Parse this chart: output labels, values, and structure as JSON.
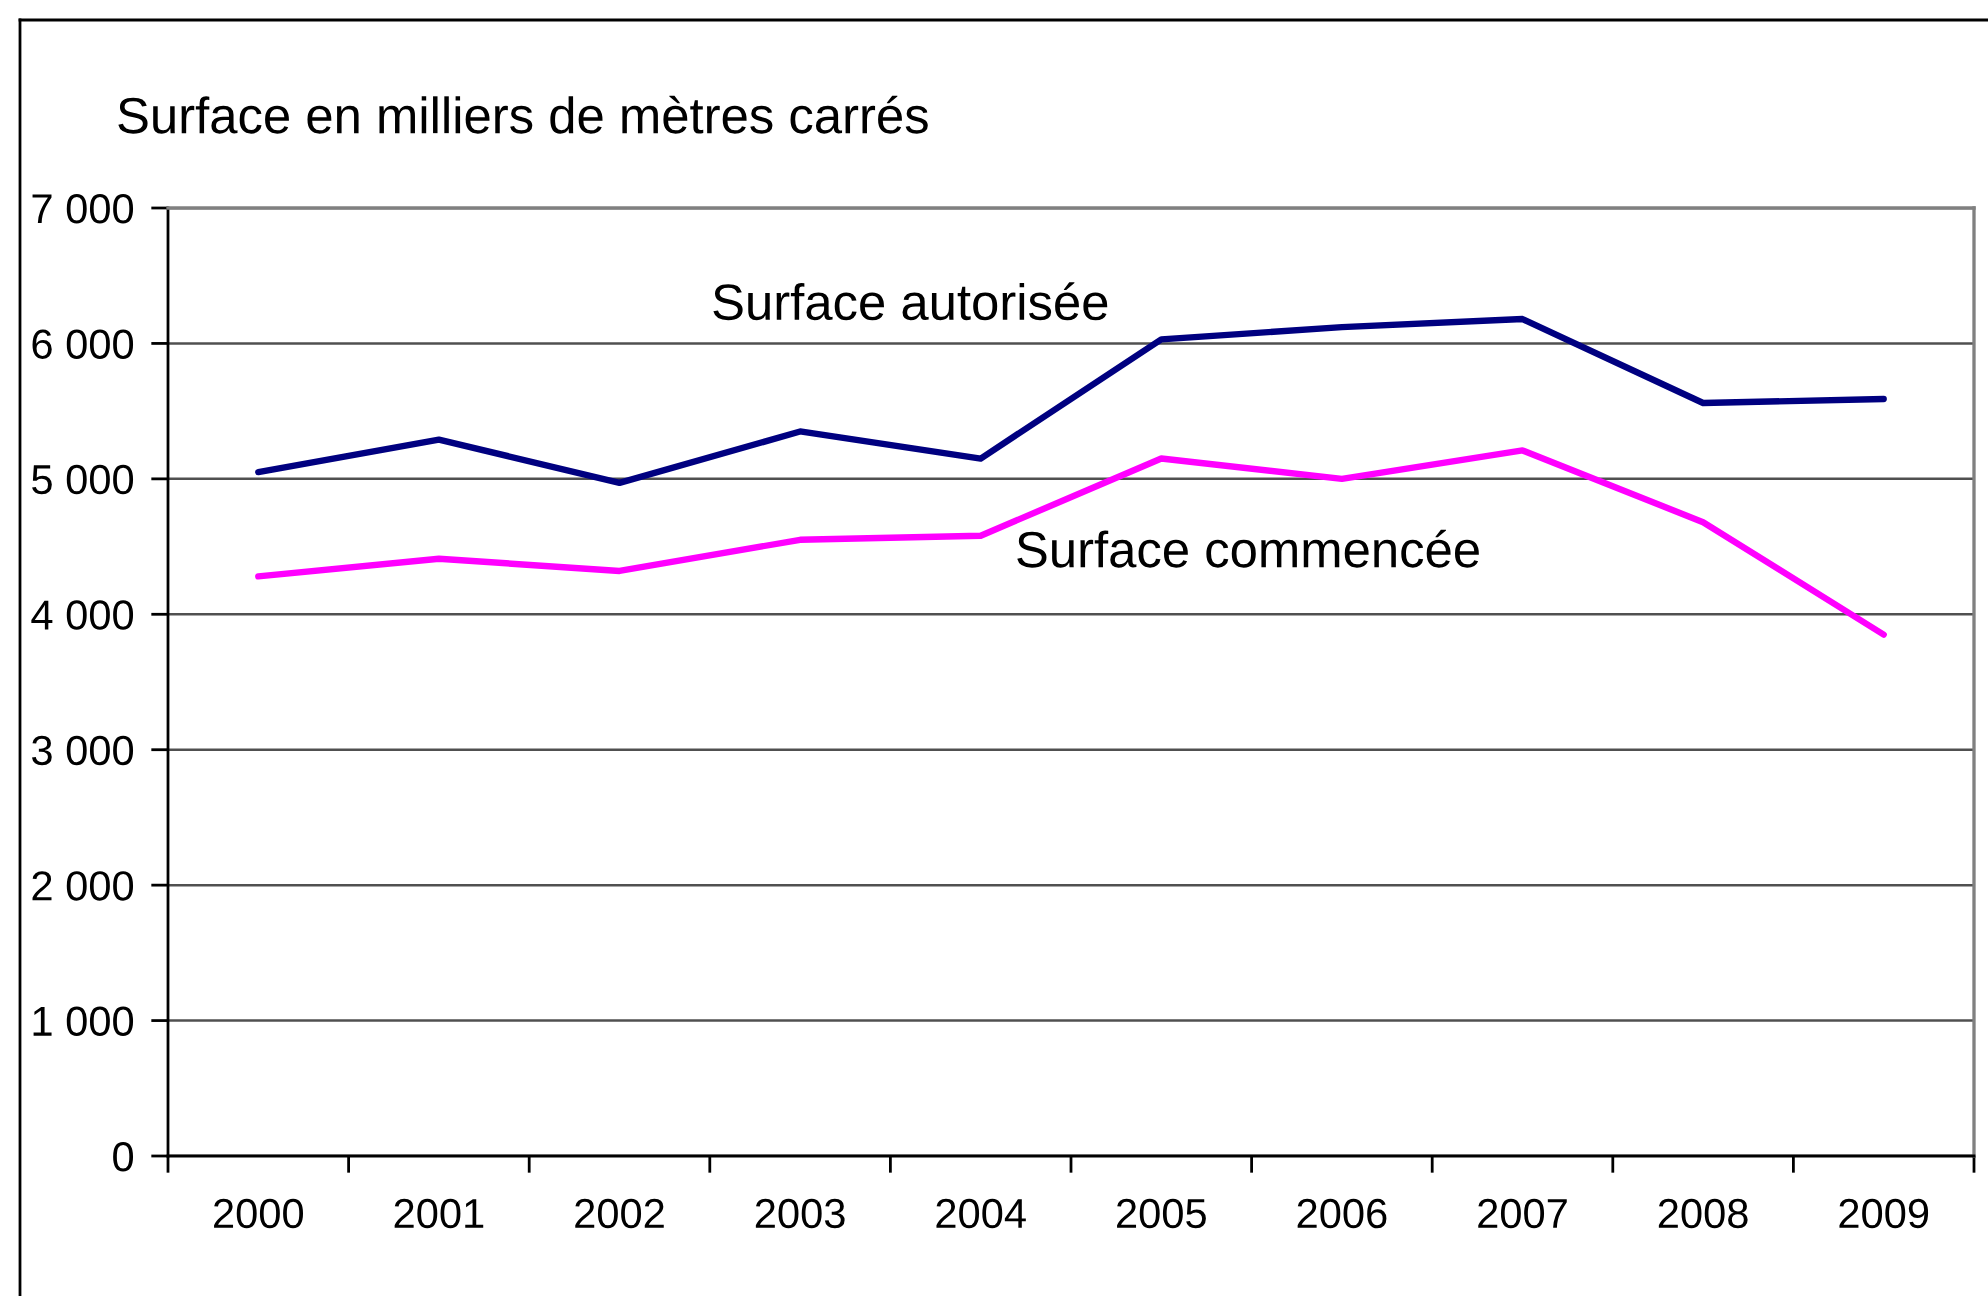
{
  "chart_data": {
    "type": "line",
    "ylabel": "Surface en milliers de mètres carrés",
    "categories": [
      "2000",
      "2001",
      "2002",
      "2003",
      "2004",
      "2005",
      "2006",
      "2007",
      "2008",
      "2009"
    ],
    "series": [
      {
        "name": "Surface autorisée",
        "color": "#000080",
        "values": [
          5050,
          5290,
          4970,
          5350,
          5150,
          6030,
          6120,
          6180,
          5560,
          5590
        ]
      },
      {
        "name": "Surface commencée",
        "color": "#ff00ff",
        "values": [
          4280,
          4410,
          4320,
          4550,
          4580,
          5150,
          5000,
          5210,
          4680,
          3850
        ]
      }
    ],
    "ylim": [
      0,
      7000
    ],
    "yticks": [
      0,
      {
        "value": 1000,
        "label": "1 000"
      },
      {
        "value": 2000,
        "label": "2 000"
      },
      {
        "value": 3000,
        "label": "3 000"
      },
      {
        "value": 4000,
        "label": "4 000"
      },
      {
        "value": 5000,
        "label": "5 000"
      },
      {
        "value": 6000,
        "label": "6 000"
      },
      {
        "value": 7000,
        "label": "7 000"
      }
    ],
    "grid": "y",
    "line_style": "solid"
  }
}
